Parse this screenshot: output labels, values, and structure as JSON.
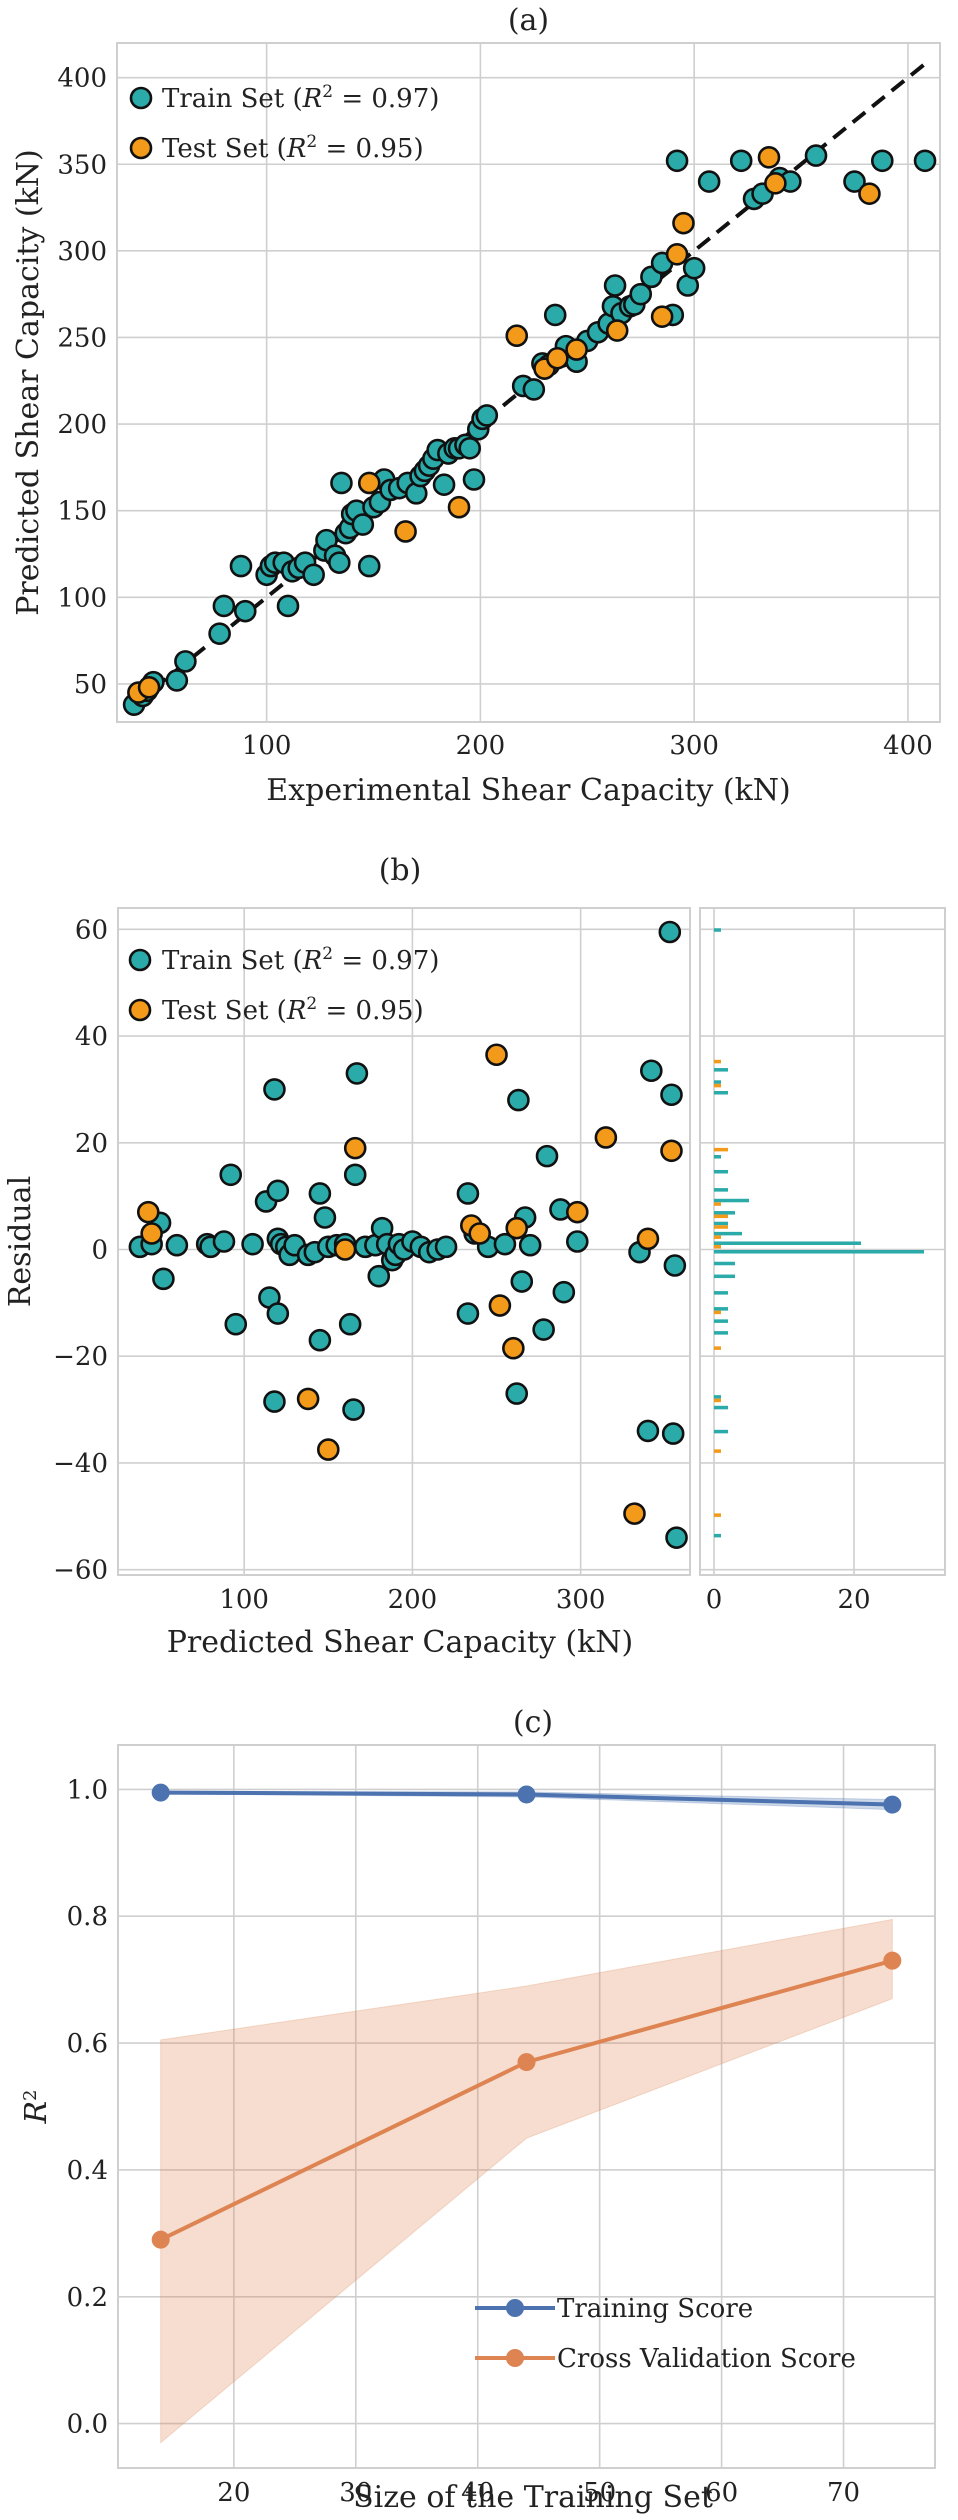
{
  "chart_data": [
    {
      "type": "scatter",
      "title": "(a)",
      "xlabel": "Experimental Shear Capacity (kN)",
      "ylabel": "Predicted Shear Capacity (kN)",
      "xlim": [
        30,
        415
      ],
      "ylim": [
        28,
        420
      ],
      "xticks": [
        "100",
        "200",
        "300",
        "400"
      ],
      "yticks": [
        "50",
        "100",
        "150",
        "200",
        "250",
        "300",
        "350",
        "400"
      ],
      "grid": true,
      "legend": "top-left",
      "reference_line": {
        "style": "dashed",
        "color": "#111111",
        "x": [
          38,
          408
        ],
        "y": [
          38,
          408
        ]
      },
      "series": [
        {
          "name": "Train Set ($R^2 = 0.97$)",
          "color": "#2aaaa8",
          "points": [
            [
              38,
              38
            ],
            [
              42,
              43
            ],
            [
              44,
              46
            ],
            [
              47,
              51
            ],
            [
              58,
              52
            ],
            [
              62,
              63
            ],
            [
              78,
              79
            ],
            [
              80,
              95
            ],
            [
              88,
              118
            ],
            [
              90,
              92
            ],
            [
              100,
              113
            ],
            [
              102,
              118
            ],
            [
              104,
              120
            ],
            [
              108,
              120
            ],
            [
              110,
              95
            ],
            [
              112,
              115
            ],
            [
              115,
              117
            ],
            [
              118,
              120
            ],
            [
              122,
              113
            ],
            [
              127,
              127
            ],
            [
              128,
              133
            ],
            [
              132,
              124
            ],
            [
              134,
              120
            ],
            [
              135,
              166
            ],
            [
              137,
              137
            ],
            [
              139,
              140
            ],
            [
              140,
              148
            ],
            [
              142,
              150
            ],
            [
              145,
              142
            ],
            [
              148,
              118
            ],
            [
              150,
              152
            ],
            [
              153,
              155
            ],
            [
              155,
              168
            ],
            [
              158,
              162
            ],
            [
              162,
              163
            ],
            [
              166,
              166
            ],
            [
              170,
              160
            ],
            [
              172,
              170
            ],
            [
              174,
              173
            ],
            [
              176,
              176
            ],
            [
              178,
              180
            ],
            [
              180,
              185
            ],
            [
              183,
              165
            ],
            [
              185,
              183
            ],
            [
              188,
              186
            ],
            [
              190,
              186
            ],
            [
              193,
              188
            ],
            [
              195,
              186
            ],
            [
              197,
              168
            ],
            [
              199,
              197
            ],
            [
              201,
              203
            ],
            [
              203,
              205
            ],
            [
              220,
              222
            ],
            [
              225,
              220
            ],
            [
              229,
              235
            ],
            [
              232,
              234
            ],
            [
              235,
              263
            ],
            [
              238,
              239
            ],
            [
              240,
              245
            ],
            [
              245,
              236
            ],
            [
              250,
              248
            ],
            [
              255,
              253
            ],
            [
              260,
              258
            ],
            [
              262,
              268
            ],
            [
              263,
              280
            ],
            [
              266,
              264
            ],
            [
              270,
              268
            ],
            [
              272,
              269
            ],
            [
              275,
              275
            ],
            [
              280,
              285
            ],
            [
              285,
              293
            ],
            [
              290,
              263
            ],
            [
              292,
              352
            ],
            [
              297,
              280
            ],
            [
              300,
              290
            ],
            [
              307,
              340
            ],
            [
              322,
              352
            ],
            [
              328,
              330
            ],
            [
              332,
              333
            ],
            [
              340,
              342
            ],
            [
              345,
              340
            ],
            [
              357,
              355
            ],
            [
              375,
              340
            ],
            [
              388,
              352
            ],
            [
              408,
              352
            ]
          ]
        },
        {
          "name": "Test Set ($R^2 = 0.95$)",
          "color": "#f39a1a",
          "points": [
            [
              40,
              45
            ],
            [
              45,
              48
            ],
            [
              148,
              166
            ],
            [
              165,
              138
            ],
            [
              190,
              152
            ],
            [
              217,
              251
            ],
            [
              230,
              232
            ],
            [
              236,
              238
            ],
            [
              245,
              243
            ],
            [
              264,
              254
            ],
            [
              285,
              262
            ],
            [
              292,
              298
            ],
            [
              295,
              316
            ],
            [
              335,
              354
            ],
            [
              338,
              339
            ],
            [
              382,
              333
            ]
          ]
        }
      ]
    },
    {
      "type": "scatter",
      "title": "(b)",
      "xlabel": "Predicted Shear Capacity (kN)",
      "ylabel": "Residual",
      "xlim": [
        25,
        365
      ],
      "ylim": [
        -61,
        64
      ],
      "xticks": [
        "100",
        "200",
        "300"
      ],
      "yticks": [
        "60",
        "40",
        "20",
        "0",
        "−20",
        "−40",
        "−60"
      ],
      "grid": true,
      "legend": "top-left",
      "series": [
        {
          "name": "Train Set ($R^2 = 0.97$)",
          "color": "#2aaaa8",
          "points": [
            [
              38,
              0.5
            ],
            [
              45,
              1
            ],
            [
              50,
              5
            ],
            [
              52,
              -5.5
            ],
            [
              60,
              0.8
            ],
            [
              78,
              1
            ],
            [
              80,
              0.5
            ],
            [
              88,
              1.5
            ],
            [
              92,
              14
            ],
            [
              95,
              -14
            ],
            [
              105,
              1
            ],
            [
              113,
              9
            ],
            [
              115,
              -9
            ],
            [
              118,
              -28.5
            ],
            [
              118,
              30
            ],
            [
              120,
              -12
            ],
            [
              120,
              11
            ],
            [
              120,
              2
            ],
            [
              122,
              1
            ],
            [
              125,
              0.5
            ],
            [
              127,
              -1
            ],
            [
              130,
              0.8
            ],
            [
              138,
              -1
            ],
            [
              142,
              -0.5
            ],
            [
              145,
              -17
            ],
            [
              145,
              10.5
            ],
            [
              148,
              6
            ],
            [
              150,
              0.5
            ],
            [
              155,
              0.8
            ],
            [
              160,
              1
            ],
            [
              163,
              -14
            ],
            [
              165,
              -30
            ],
            [
              166,
              14
            ],
            [
              167,
              33
            ],
            [
              172,
              0.5
            ],
            [
              178,
              0.8
            ],
            [
              180,
              -5
            ],
            [
              182,
              4
            ],
            [
              185,
              1
            ],
            [
              188,
              -2
            ],
            [
              190,
              -1
            ],
            [
              192,
              1
            ],
            [
              195,
              0
            ],
            [
              200,
              1.5
            ],
            [
              205,
              0.5
            ],
            [
              210,
              -0.5
            ],
            [
              215,
              0
            ],
            [
              220,
              0.5
            ],
            [
              233,
              10.5
            ],
            [
              233,
              -12
            ],
            [
              237,
              3
            ],
            [
              245,
              0.5
            ],
            [
              255,
              1
            ],
            [
              262,
              -27
            ],
            [
              263,
              28
            ],
            [
              265,
              -6
            ],
            [
              267,
              6
            ],
            [
              270,
              0.8
            ],
            [
              278,
              -15
            ],
            [
              280,
              17.5
            ],
            [
              288,
              7.5
            ],
            [
              290,
              -8
            ],
            [
              298,
              1.5
            ],
            [
              335,
              -0.5
            ],
            [
              340,
              -34
            ],
            [
              342,
              33.5
            ],
            [
              353,
              59.5
            ],
            [
              354,
              29
            ],
            [
              355,
              -34.5
            ],
            [
              356,
              -3
            ],
            [
              357,
              -54
            ]
          ]
        },
        {
          "name": "Test Set ($R^2 = 0.95$)",
          "color": "#f39a1a",
          "points": [
            [
              43,
              7
            ],
            [
              45,
              3
            ],
            [
              138,
              -28
            ],
            [
              150,
              -37.5
            ],
            [
              160,
              0
            ],
            [
              166,
              19
            ],
            [
              235,
              4.5
            ],
            [
              240,
              3
            ],
            [
              250,
              36.5
            ],
            [
              252,
              -10.5
            ],
            [
              260,
              -18.5
            ],
            [
              262,
              4
            ],
            [
              298,
              7
            ],
            [
              315,
              21
            ],
            [
              332,
              -49.5
            ],
            [
              340,
              2
            ],
            [
              354,
              18.5
            ]
          ]
        }
      ],
      "histogram": {
        "xlabel_ticks": [
          "0",
          "20"
        ],
        "xlim": [
          -2,
          33
        ],
        "bin_width": 1.6,
        "bins": [
          {
            "center": 59.5,
            "train": 1,
            "test": 0
          },
          {
            "center": 35.5,
            "train": 0,
            "test": 1
          },
          {
            "center": 33.3,
            "train": 2,
            "test": 0
          },
          {
            "center": 31.0,
            "train": 1,
            "test": 1
          },
          {
            "center": 29.0,
            "train": 2,
            "test": 0
          },
          {
            "center": 19.0,
            "train": 0,
            "test": 2
          },
          {
            "center": 17.0,
            "train": 1,
            "test": 0
          },
          {
            "center": 14.2,
            "train": 2,
            "test": 0
          },
          {
            "center": 10.8,
            "train": 2,
            "test": 0
          },
          {
            "center": 8.8,
            "train": 5,
            "test": 1
          },
          {
            "center": 6.5,
            "train": 3,
            "test": 2
          },
          {
            "center": 4.5,
            "train": 2,
            "test": 2
          },
          {
            "center": 2.6,
            "train": 4,
            "test": 1
          },
          {
            "center": 0.8,
            "train": 21,
            "test": 1
          },
          {
            "center": -0.8,
            "train": 30,
            "test": 0
          },
          {
            "center": -3.0,
            "train": 3,
            "test": 0
          },
          {
            "center": -5.4,
            "train": 3,
            "test": 0
          },
          {
            "center": -8.5,
            "train": 2,
            "test": 0
          },
          {
            "center": -11.5,
            "train": 2,
            "test": 1
          },
          {
            "center": -13.8,
            "train": 2,
            "test": 0
          },
          {
            "center": -16.0,
            "train": 2,
            "test": 0
          },
          {
            "center": -18.2,
            "train": 0,
            "test": 1
          },
          {
            "center": -28.0,
            "train": 1,
            "test": 1
          },
          {
            "center": -30.0,
            "train": 2,
            "test": 0
          },
          {
            "center": -34.5,
            "train": 2,
            "test": 0
          },
          {
            "center": -37.5,
            "train": 0,
            "test": 1
          },
          {
            "center": -49.5,
            "train": 0,
            "test": 1
          },
          {
            "center": -54.0,
            "train": 1,
            "test": 0
          }
        ]
      }
    },
    {
      "type": "line",
      "title": "(c)",
      "xlabel": "Size of the Training Set",
      "ylabel": "$R^2$",
      "xlim": [
        10.5,
        77.5
      ],
      "ylim": [
        -0.07,
        1.07
      ],
      "xticks": [
        20,
        30,
        40,
        50,
        60,
        70
      ],
      "yticks": [
        "0.0",
        "0.2",
        "0.4",
        "0.6",
        "0.8",
        "1.0"
      ],
      "grid": true,
      "legend": "bottom-right",
      "series": [
        {
          "name": "Training Score",
          "color": "#4c72b0",
          "x": [
            14,
            44,
            74
          ],
          "y": [
            0.995,
            0.992,
            0.976
          ],
          "band_lower": [
            0.993,
            0.988,
            0.968
          ],
          "band_upper": [
            0.997,
            0.996,
            0.984
          ]
        },
        {
          "name": "Cross Validation Score",
          "color": "#dd8452",
          "x": [
            14,
            44,
            74
          ],
          "y": [
            0.29,
            0.57,
            0.73
          ],
          "band_lower": [
            -0.03,
            0.45,
            0.67
          ],
          "band_upper": [
            0.605,
            0.69,
            0.795
          ]
        }
      ]
    }
  ]
}
